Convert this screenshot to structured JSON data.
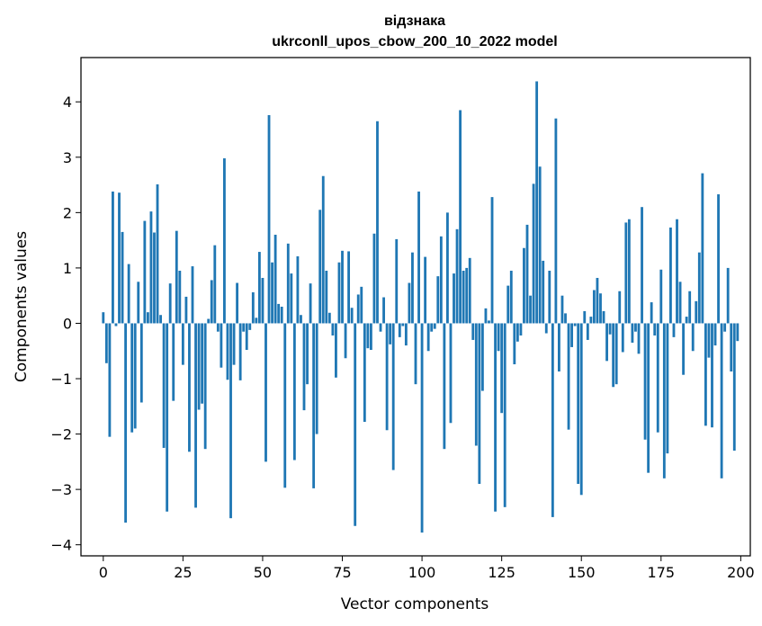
{
  "chart_data": {
    "type": "bar",
    "title": "відзнака",
    "subtitle": "ukrconll_upos_cbow_200_10_2022 model",
    "xlabel": "Vector components",
    "ylabel": "Components values",
    "xlim": [
      -7,
      203
    ],
    "ylim": [
      -4.2,
      4.8
    ],
    "xticks": [
      0,
      25,
      50,
      75,
      100,
      125,
      150,
      175,
      200
    ],
    "xtick_labels": [
      "0",
      "25",
      "50",
      "75",
      "100",
      "125",
      "150",
      "175",
      "200"
    ],
    "yticks": [
      -4,
      -3,
      -2,
      -1,
      0,
      1,
      2,
      3,
      4
    ],
    "ytick_labels": [
      "−4",
      "−3",
      "−2",
      "−1",
      "0",
      "1",
      "2",
      "3",
      "4"
    ],
    "grid": false,
    "bar_color": "#1f77b4",
    "x": [
      0,
      1,
      2,
      3,
      4,
      5,
      6,
      7,
      8,
      9,
      10,
      11,
      12,
      13,
      14,
      15,
      16,
      17,
      18,
      19,
      20,
      21,
      22,
      23,
      24,
      25,
      26,
      27,
      28,
      29,
      30,
      31,
      32,
      33,
      34,
      35,
      36,
      37,
      38,
      39,
      40,
      41,
      42,
      43,
      44,
      45,
      46,
      47,
      48,
      49,
      50,
      51,
      52,
      53,
      54,
      55,
      56,
      57,
      58,
      59,
      60,
      61,
      62,
      63,
      64,
      65,
      66,
      67,
      68,
      69,
      70,
      71,
      72,
      73,
      74,
      75,
      76,
      77,
      78,
      79,
      80,
      81,
      82,
      83,
      84,
      85,
      86,
      87,
      88,
      89,
      90,
      91,
      92,
      93,
      94,
      95,
      96,
      97,
      98,
      99,
      100,
      101,
      102,
      103,
      104,
      105,
      106,
      107,
      108,
      109,
      110,
      111,
      112,
      113,
      114,
      115,
      116,
      117,
      118,
      119,
      120,
      121,
      122,
      123,
      124,
      125,
      126,
      127,
      128,
      129,
      130,
      131,
      132,
      133,
      134,
      135,
      136,
      137,
      138,
      139,
      140,
      141,
      142,
      143,
      144,
      145,
      146,
      147,
      148,
      149,
      150,
      151,
      152,
      153,
      154,
      155,
      156,
      157,
      158,
      159,
      160,
      161,
      162,
      163,
      164,
      165,
      166,
      167,
      168,
      169,
      170,
      171,
      172,
      173,
      174,
      175,
      176,
      177,
      178,
      179,
      180,
      181,
      182,
      183,
      184,
      185,
      186,
      187,
      188,
      189,
      190,
      191,
      192,
      193,
      194,
      195,
      196,
      197,
      198,
      199
    ],
    "values": [
      0.2,
      -0.72,
      -2.05,
      2.38,
      -0.05,
      2.36,
      1.65,
      -3.6,
      1.07,
      -1.97,
      -1.9,
      0.75,
      -1.43,
      1.85,
      0.2,
      2.02,
      1.64,
      2.51,
      0.15,
      -2.25,
      -3.4,
      0.72,
      -1.4,
      1.67,
      0.95,
      -0.75,
      0.48,
      -2.32,
      1.03,
      -3.33,
      -1.56,
      -1.45,
      -2.27,
      0.08,
      0.78,
      1.41,
      -0.15,
      -0.8,
      2.98,
      -1.02,
      -3.52,
      -0.75,
      0.73,
      -1.03,
      -0.15,
      -0.48,
      -0.12,
      0.56,
      0.1,
      1.29,
      0.82,
      -2.5,
      3.76,
      1.1,
      1.6,
      0.35,
      0.3,
      -2.97,
      1.44,
      0.9,
      -2.47,
      1.21,
      0.15,
      -1.57,
      -1.1,
      0.72,
      -2.98,
      -2.0,
      2.05,
      2.66,
      0.95,
      0.19,
      -0.22,
      -0.98,
      1.1,
      1.31,
      -0.63,
      1.3,
      0.28,
      -3.66,
      0.52,
      0.66,
      -1.78,
      -0.45,
      -0.48,
      1.62,
      3.65,
      -0.15,
      0.47,
      -1.93,
      -0.38,
      -2.65,
      1.52,
      -0.25,
      -0.05,
      -0.4,
      0.73,
      1.28,
      -1.1,
      2.38,
      -3.78,
      1.2,
      -0.5,
      -0.15,
      -0.1,
      0.85,
      1.57,
      -2.27,
      2.0,
      -1.8,
      0.9,
      1.7,
      3.85,
      0.95,
      1.0,
      1.18,
      -0.3,
      -2.21,
      -2.9,
      -1.22,
      0.27,
      0.05,
      2.28,
      -3.4,
      -0.5,
      -1.62,
      -3.32,
      0.68,
      0.95,
      -0.74,
      -0.33,
      -0.22,
      1.36,
      1.78,
      0.5,
      2.52,
      4.37,
      2.83,
      1.13,
      -0.18,
      0.95,
      -3.5,
      3.7,
      -0.87,
      0.5,
      0.18,
      -1.92,
      -0.43,
      -0.05,
      -2.9,
      -3.1,
      0.22,
      -0.3,
      0.12,
      0.6,
      0.82,
      0.54,
      0.22,
      -0.68,
      -0.2,
      -1.15,
      -1.1,
      0.58,
      -0.52,
      1.82,
      1.88,
      -0.35,
      -0.15,
      -0.55,
      2.1,
      -2.1,
      -2.7,
      0.38,
      -0.22,
      -1.97,
      0.97,
      -2.8,
      -2.35,
      1.73,
      -0.25,
      1.88,
      0.75,
      -0.93,
      0.12,
      0.58,
      -0.5,
      0.4,
      1.28,
      2.71,
      -1.85,
      -0.62,
      -1.88,
      -0.4,
      2.33,
      -2.8,
      -0.15,
      1.0,
      -0.87,
      -2.3,
      -0.32
    ]
  }
}
